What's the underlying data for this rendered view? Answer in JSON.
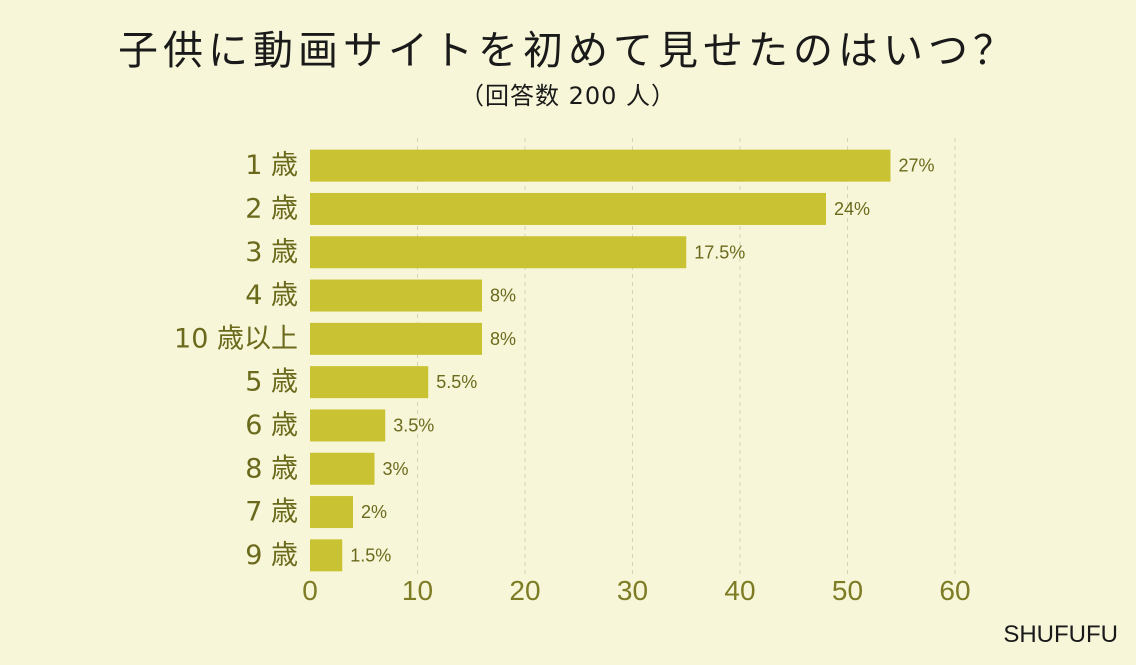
{
  "chart_data": {
    "type": "bar",
    "orientation": "horizontal",
    "title": "子供に動画サイトを初めて見せたのはいつ？",
    "subtitle": "（回答数 200 人）",
    "categories": [
      "1 歳",
      "2 歳",
      "3 歳",
      "4 歳",
      "10 歳以上",
      "5 歳",
      "6 歳",
      "8 歳",
      "7 歳",
      "9 歳"
    ],
    "values": [
      54,
      48,
      35,
      16,
      16,
      11,
      7,
      6,
      4,
      3
    ],
    "value_labels": [
      "27%",
      "24%",
      "17.5%",
      "8%",
      "8%",
      "5.5%",
      "3.5%",
      "3%",
      "2%",
      "1.5%"
    ],
    "xlim": [
      0,
      60
    ],
    "xticks": [
      0,
      10,
      20,
      30,
      40,
      50,
      60
    ],
    "grid": "vertical dashed",
    "bar_color": "#c9c333"
  },
  "source": "SHUFUFU"
}
